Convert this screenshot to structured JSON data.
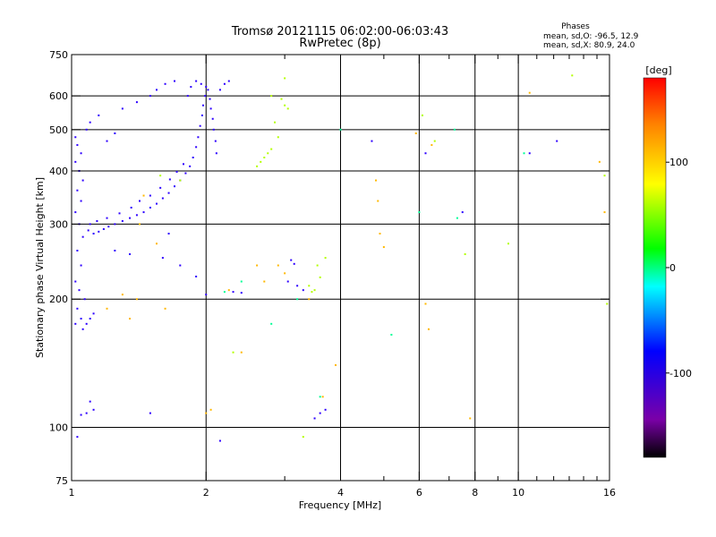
{
  "chart_data": {
    "type": "scatter",
    "title": "Tromsø 20121115 06:02:00-06:03:43",
    "subtitle": "RwPretec (8p)",
    "stats": {
      "heading": "Phases",
      "line_o": "mean, sd,O: -96.5, 12.9",
      "line_x": "mean, sd,X: 80.9, 24.0"
    },
    "xlabel": "Frequency [MHz]",
    "ylabel": "Stationary phase Virtual Height [km]",
    "xscale": "log",
    "yscale": "log",
    "xlim": [
      1,
      16
    ],
    "ylim": [
      75,
      750
    ],
    "xticks": [
      1,
      2,
      4,
      6,
      8,
      10,
      16
    ],
    "xtick_labels": [
      "1",
      "2",
      "4",
      "6",
      "8",
      "10",
      "16"
    ],
    "xgrid": [
      2,
      4,
      6,
      8,
      10
    ],
    "xminor": [
      3,
      5,
      7,
      9,
      11,
      12,
      13,
      14,
      15
    ],
    "yticks": [
      75,
      100,
      200,
      300,
      400,
      500,
      600,
      750
    ],
    "ytick_labels": [
      "75",
      "100",
      "200",
      "300",
      "400",
      "500",
      "600",
      "750"
    ],
    "ygrid": [
      100,
      200,
      300,
      400,
      500,
      600
    ],
    "grid": true,
    "colorbar": {
      "label": "[deg]",
      "min": -180,
      "max": 180,
      "ticks": [
        100,
        0,
        -100
      ],
      "tick_labels": [
        "100",
        "0",
        "-100"
      ]
    },
    "series": [
      {
        "points": [
          [
            1.02,
            480
          ],
          [
            1.03,
            460
          ],
          [
            1.05,
            440
          ],
          [
            1.02,
            420
          ],
          [
            1.04,
            400
          ],
          [
            1.06,
            380
          ],
          [
            1.03,
            360
          ],
          [
            1.05,
            340
          ],
          [
            1.02,
            320
          ],
          [
            1.04,
            300
          ],
          [
            1.06,
            280
          ],
          [
            1.03,
            260
          ],
          [
            1.05,
            240
          ],
          [
            1.02,
            220
          ],
          [
            1.04,
            210
          ],
          [
            1.07,
            200
          ],
          [
            1.03,
            190
          ],
          [
            1.05,
            180
          ],
          [
            1.08,
            175
          ],
          [
            1.1,
            180
          ],
          [
            1.12,
            185
          ],
          [
            1.02,
            175
          ],
          [
            1.06,
            170
          ],
          [
            1.09,
            290
          ],
          [
            1.12,
            285
          ],
          [
            1.15,
            288
          ],
          [
            1.18,
            292
          ],
          [
            1.21,
            296
          ],
          [
            1.25,
            300
          ],
          [
            1.3,
            305
          ],
          [
            1.35,
            310
          ],
          [
            1.4,
            315
          ],
          [
            1.45,
            320
          ],
          [
            1.5,
            328
          ],
          [
            1.55,
            335
          ],
          [
            1.6,
            345
          ],
          [
            1.65,
            355
          ],
          [
            1.7,
            368
          ],
          [
            1.75,
            380
          ],
          [
            1.8,
            395
          ],
          [
            1.84,
            410
          ],
          [
            1.87,
            430
          ],
          [
            1.9,
            455
          ],
          [
            1.92,
            480
          ],
          [
            1.94,
            510
          ],
          [
            1.96,
            540
          ],
          [
            1.97,
            570
          ],
          [
            1.99,
            600
          ],
          [
            2.0,
            630
          ],
          [
            2.02,
            620
          ],
          [
            2.04,
            590
          ],
          [
            2.05,
            560
          ],
          [
            2.07,
            530
          ],
          [
            2.08,
            500
          ],
          [
            2.1,
            470
          ],
          [
            2.11,
            440
          ],
          [
            1.82,
            600
          ],
          [
            1.85,
            630
          ],
          [
            1.9,
            650
          ],
          [
            1.95,
            640
          ],
          [
            2.15,
            620
          ],
          [
            2.2,
            640
          ],
          [
            2.25,
            650
          ],
          [
            1.1,
            300
          ],
          [
            1.14,
            305
          ],
          [
            1.2,
            310
          ],
          [
            1.28,
            318
          ],
          [
            1.36,
            328
          ],
          [
            1.42,
            340
          ],
          [
            1.5,
            350
          ],
          [
            1.58,
            365
          ],
          [
            1.66,
            382
          ],
          [
            1.72,
            398
          ],
          [
            1.78,
            415
          ],
          [
            1.2,
            470
          ],
          [
            1.25,
            490
          ],
          [
            1.08,
            500
          ],
          [
            1.1,
            520
          ],
          [
            1.15,
            540
          ],
          [
            1.3,
            560
          ],
          [
            1.4,
            580
          ],
          [
            1.5,
            600
          ],
          [
            1.55,
            620
          ],
          [
            1.62,
            640
          ],
          [
            1.7,
            650
          ],
          [
            1.12,
            110
          ],
          [
            1.08,
            108
          ],
          [
            1.05,
            107
          ],
          [
            1.1,
            115
          ],
          [
            1.03,
            95
          ],
          [
            1.5,
            108
          ],
          [
            1.65,
            285
          ],
          [
            1.9,
            226
          ],
          [
            2.0,
            205
          ],
          [
            2.3,
            208
          ],
          [
            2.4,
            207
          ],
          [
            3.1,
            247
          ],
          [
            3.15,
            242
          ],
          [
            3.05,
            220
          ],
          [
            3.2,
            215
          ],
          [
            3.3,
            210
          ],
          [
            3.6,
            108
          ],
          [
            3.7,
            110
          ],
          [
            3.5,
            105
          ],
          [
            2.15,
            93
          ],
          [
            4.7,
            470
          ],
          [
            6.2,
            440
          ],
          [
            10.6,
            440
          ],
          [
            12.2,
            470
          ],
          [
            7.5,
            320
          ],
          [
            1.25,
            260
          ],
          [
            1.35,
            255
          ],
          [
            1.6,
            250
          ],
          [
            1.75,
            240
          ]
        ]
      },
      {
        "points": [
          [
            1.4,
            200
          ],
          [
            1.35,
            180
          ],
          [
            1.45,
            350
          ],
          [
            1.55,
            270
          ],
          [
            1.62,
            190
          ],
          [
            1.42,
            300
          ],
          [
            2.0,
            108
          ],
          [
            2.05,
            110
          ],
          [
            2.7,
            220
          ],
          [
            2.9,
            240
          ],
          [
            3.0,
            230
          ],
          [
            4.8,
            380
          ],
          [
            4.85,
            340
          ],
          [
            4.9,
            285
          ],
          [
            3.9,
            140
          ],
          [
            2.4,
            150
          ],
          [
            6.2,
            195
          ],
          [
            6.3,
            170
          ],
          [
            5.9,
            490
          ],
          [
            6.4,
            460
          ],
          [
            7.8,
            105
          ],
          [
            10.6,
            610
          ],
          [
            15.6,
            320
          ],
          [
            15.2,
            420
          ],
          [
            1.2,
            190
          ],
          [
            1.3,
            205
          ],
          [
            2.25,
            210
          ],
          [
            2.6,
            240
          ],
          [
            3.65,
            118
          ],
          [
            3.4,
            200
          ],
          [
            5.0,
            265
          ]
        ]
      },
      {
        "points": [
          [
            2.7,
            430
          ],
          [
            2.75,
            440
          ],
          [
            2.8,
            450
          ],
          [
            2.65,
            420
          ],
          [
            2.6,
            410
          ],
          [
            2.9,
            480
          ],
          [
            2.95,
            590
          ],
          [
            3.0,
            570
          ],
          [
            3.05,
            560
          ],
          [
            2.85,
            520
          ],
          [
            3.0,
            660
          ],
          [
            3.6,
            225
          ],
          [
            3.55,
            240
          ],
          [
            3.5,
            210
          ],
          [
            3.45,
            208
          ],
          [
            3.4,
            215
          ],
          [
            3.7,
            250
          ],
          [
            6.1,
            540
          ],
          [
            6.5,
            470
          ],
          [
            7.6,
            255
          ],
          [
            9.5,
            270
          ],
          [
            13.2,
            670
          ],
          [
            15.6,
            390
          ],
          [
            15.8,
            195
          ],
          [
            2.8,
            600
          ],
          [
            3.3,
            95
          ],
          [
            1.75,
            380
          ],
          [
            1.58,
            390
          ],
          [
            2.3,
            150
          ]
        ]
      },
      {
        "points": [
          [
            2.8,
            175
          ],
          [
            3.2,
            200
          ],
          [
            3.6,
            118
          ],
          [
            5.2,
            165
          ],
          [
            6.0,
            320
          ],
          [
            7.2,
            500
          ],
          [
            7.3,
            310
          ],
          [
            10.3,
            440
          ],
          [
            2.4,
            220
          ],
          [
            2.2,
            208
          ],
          [
            4.0,
            500
          ]
        ]
      }
    ]
  }
}
